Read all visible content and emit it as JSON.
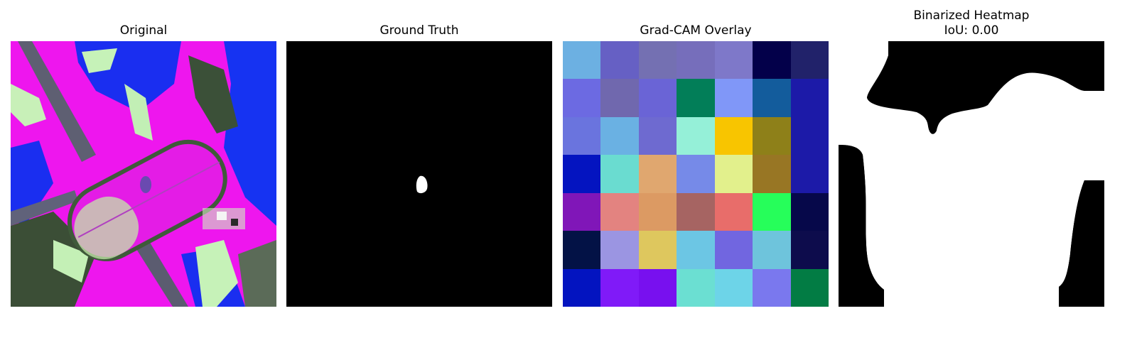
{
  "panels": {
    "original": {
      "title": "Original"
    },
    "ground_truth": {
      "title": "Ground Truth"
    },
    "gradcam": {
      "title": "Grad-CAM Overlay",
      "cells": [
        [
          "#6cb0e2",
          "#6660c4",
          "#7470b2",
          "#766ebb",
          "#7e78c9",
          "#03004a",
          "#21226a"
        ],
        [
          "#6c6ae2",
          "#7068ae",
          "#6a64d6",
          "#027e58",
          "#8097f8",
          "#135c9c",
          "#1c1aa8"
        ],
        [
          "#6a74de",
          "#6ab1e3",
          "#6e6ad0",
          "#95f0d8",
          "#f8c500",
          "#8e8019",
          "#1c1aa8"
        ],
        [
          "#0414c0",
          "#6adcd0",
          "#e0a76f",
          "#768ae8",
          "#e2f08c",
          "#987624",
          "#1c1aa8"
        ],
        [
          "#8016b8",
          "#e38380",
          "#dc9a63",
          "#a66462",
          "#e86d6a",
          "#26fe5a",
          "#06084a"
        ],
        [
          "#031246",
          "#9b95e2",
          "#dec75e",
          "#6cc6e4",
          "#7166e0",
          "#6ec4dc",
          "#0d0c4c"
        ],
        [
          "#0314c0",
          "#801af8",
          "#7810ef",
          "#6bdfd2",
          "#6dd4e8",
          "#7a78ee",
          "#027c44"
        ]
      ]
    },
    "binarized": {
      "title": "Binarized Heatmap",
      "subtitle": "IoU: 0.00"
    }
  }
}
